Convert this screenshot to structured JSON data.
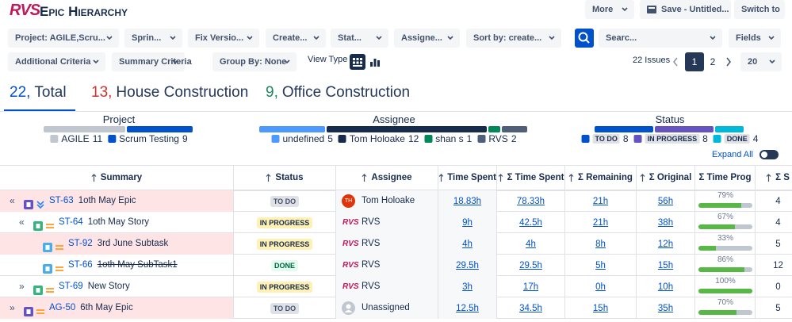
{
  "header": {
    "logo": "RVS",
    "title": "Epic Hierarchy",
    "buttons": [
      "More",
      "Save - Untitled...",
      "Switch to"
    ]
  },
  "filters": [
    "Project: AGILE,Scru...",
    "Sprin...",
    "Fix Versio...",
    "Create...",
    "Stat...",
    "Assigne...",
    "Sort by: create..."
  ],
  "search": "Searc...",
  "fields": "Fields",
  "options": [
    "Additional Criteria",
    "Summary Criteria",
    "Group By: None"
  ],
  "view_type": "View Type",
  "pagination": {
    "issues": "22 Issues",
    "pages": [
      "1",
      "2"
    ],
    "page_size": "20"
  },
  "tabs": [
    {
      "count": "22,",
      "label": "Total",
      "color": "#0052cc"
    },
    {
      "count": "13,",
      "label": "House Construction",
      "color": "#c9372c"
    },
    {
      "count": "9,",
      "label": "Office Construction",
      "color": "#1f845a"
    }
  ],
  "summary": [
    {
      "title": "Project",
      "segments": [
        {
          "label": "AGILE",
          "value": 11,
          "color": "#c1c7d0"
        },
        {
          "label": "Scrum Testing",
          "value": 9,
          "color": "#0052cc"
        }
      ]
    },
    {
      "title": "Assignee",
      "segments": [
        {
          "label": "undefined",
          "value": 5,
          "color": "#4c9aff"
        },
        {
          "label": "Tom Holoake",
          "value": 12,
          "color": "#172b4d"
        },
        {
          "label": "shan s",
          "value": 1,
          "color": "#00875a"
        },
        {
          "label": "RVS",
          "value": 2,
          "color": "#505f79"
        }
      ]
    },
    {
      "title": "Status",
      "segments": [
        {
          "label": "TO DO",
          "value": 8,
          "color": "#0052cc"
        },
        {
          "label": "IN PROGRESS",
          "value": 8,
          "color": "#6554c0"
        },
        {
          "label": "DONE",
          "value": 4,
          "color": "#00b8d9"
        }
      ]
    }
  ],
  "expand_all": "Expand All",
  "table": {
    "columns": [
      "Summary",
      "Status",
      "Assignee",
      "Time Spent",
      "Σ Time Spent",
      "Σ Remaining",
      "Σ Original",
      "Σ Time Prog",
      "Σ S"
    ],
    "rows": [
      {
        "expand": "«",
        "key": "ST-63",
        "summary": "1oth May Epic",
        "status": "TO DO",
        "assignee": "Tom Holoake",
        "avatar": "TH",
        "time_spent": "18.83h",
        "sum_time_spent": "78.33h",
        "remaining": "21h",
        "original": "56h",
        "progress": 79,
        "progress_label": "79%",
        "last": "4"
      },
      {
        "expand": "«",
        "key": "ST-64",
        "summary": "1oth May Story",
        "status": "IN PROGRESS",
        "assignee": "RVS",
        "time_spent": "9h",
        "sum_time_spent": "42.5h",
        "remaining": "21h",
        "original": "38h",
        "progress": 67,
        "progress_label": "67%",
        "last": "4"
      },
      {
        "key": "ST-92",
        "summary": "3rd June Subtask",
        "status": "IN PROGRESS",
        "assignee": "RVS",
        "time_spent": "4h",
        "sum_time_spent": "4h",
        "remaining": "8h",
        "original": "12h",
        "progress": 33,
        "progress_label": "33%",
        "last": "5"
      },
      {
        "key": "ST-66",
        "summary": "1oth May SubTask1",
        "status": "DONE",
        "assignee": "RVS",
        "time_spent": "29.5h",
        "sum_time_spent": "29.5h",
        "remaining": "5h",
        "original": "15h",
        "progress": 86,
        "progress_label": "86%",
        "last": "12"
      },
      {
        "expand": "»",
        "key": "ST-69",
        "summary": "New Story",
        "status": "IN PROGRESS",
        "assignee": "RVS",
        "time_spent": "3h",
        "sum_time_spent": "17h",
        "remaining": "0h",
        "original": "10h",
        "progress": 100,
        "progress_label": "100%",
        "last": "0"
      },
      {
        "expand": "»",
        "key": "AG-50",
        "summary": "6th May Epic",
        "status": "TO DO",
        "assignee": "Unassigned",
        "time_spent": "12.5h",
        "sum_time_spent": "34.5h",
        "remaining": "15h",
        "original": "35h",
        "progress": 70,
        "progress_label": "70%",
        "last": "5"
      }
    ]
  }
}
